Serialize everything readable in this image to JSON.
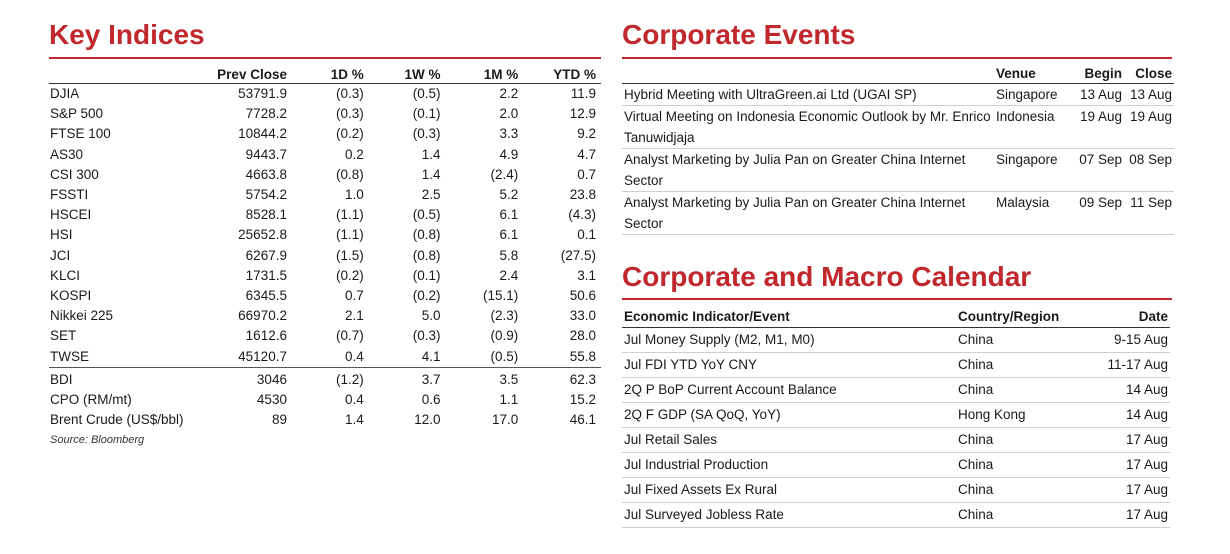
{
  "key_indices": {
    "title": "Key Indices",
    "columns": [
      "",
      "Prev Close",
      "1D %",
      "1W %",
      "1M %",
      "YTD %"
    ],
    "indices": [
      [
        "DJIA",
        "53791.9",
        "(0.3)",
        "(0.5)",
        "2.2",
        "11.9"
      ],
      [
        "S&P 500",
        "7728.2",
        "(0.3)",
        "(0.1)",
        "2.0",
        "12.9"
      ],
      [
        "FTSE 100",
        "10844.2",
        "(0.2)",
        "(0.3)",
        "3.3",
        "9.2"
      ],
      [
        "AS30",
        "9443.7",
        "0.2",
        "1.4",
        "4.9",
        "4.7"
      ],
      [
        "CSI 300",
        "4663.8",
        "(0.8)",
        "1.4",
        "(2.4)",
        "0.7"
      ],
      [
        "FSSTI",
        "5754.2",
        "1.0",
        "2.5",
        "5.2",
        "23.8"
      ],
      [
        "HSCEI",
        "8528.1",
        "(1.1)",
        "(0.5)",
        "6.1",
        "(4.3)"
      ],
      [
        "HSI",
        "25652.8",
        "(1.1)",
        "(0.8)",
        "6.1",
        "0.1"
      ],
      [
        "JCI",
        "6267.9",
        "(1.5)",
        "(0.8)",
        "5.8",
        "(27.5)"
      ],
      [
        "KLCI",
        "1731.5",
        "(0.2)",
        "(0.1)",
        "2.4",
        "3.1"
      ],
      [
        "KOSPI",
        "6345.5",
        "0.7",
        "(0.2)",
        "(15.1)",
        "50.6"
      ],
      [
        "Nikkei 225",
        "66970.2",
        "2.1",
        "5.0",
        "(2.3)",
        "33.0"
      ],
      [
        "SET",
        "1612.6",
        "(0.7)",
        "(0.3)",
        "(0.9)",
        "28.0"
      ],
      [
        "TWSE",
        "45120.7",
        "0.4",
        "4.1",
        "(0.5)",
        "55.8"
      ]
    ],
    "commodities": [
      [
        "BDI",
        "3046",
        "(1.2)",
        "3.7",
        "3.5",
        "62.3"
      ],
      [
        "CPO (RM/mt)",
        "4530",
        "0.4",
        "0.6",
        "1.1",
        "15.2"
      ],
      [
        "Brent Crude (US$/bbl)",
        "89",
        "1.4",
        "12.0",
        "17.0",
        "46.1"
      ]
    ],
    "source": "Source: Bloomberg"
  },
  "corporate_events": {
    "title": "Corporate Events",
    "columns": [
      "",
      "Venue",
      "Begin",
      "Close"
    ],
    "rows": [
      [
        "Hybrid Meeting with UltraGreen.ai Ltd (UGAI SP)",
        "Singapore",
        "13 Aug",
        "13 Aug"
      ],
      [
        "Virtual Meeting on Indonesia Economic Outlook by Mr. Enrico Tanuwidjaja",
        "Indonesia",
        "19 Aug",
        "19 Aug"
      ],
      [
        "Analyst Marketing by Julia Pan on Greater China Internet Sector",
        "Singapore",
        "07 Sep",
        "08 Sep"
      ],
      [
        "Analyst Marketing by Julia Pan on Greater China Internet Sector",
        "Malaysia",
        "09 Sep",
        "11 Sep"
      ]
    ]
  },
  "macro_calendar": {
    "title": "Corporate and Macro Calendar",
    "columns": [
      "Economic Indicator/Event",
      "Country/Region",
      "Date"
    ],
    "rows": [
      [
        "Jul Money Supply (M2, M1, M0)",
        "China",
        "9-15 Aug"
      ],
      [
        "Jul FDI YTD YoY CNY",
        "China",
        "11-17 Aug"
      ],
      [
        "2Q P BoP Current Account Balance",
        "China",
        "14 Aug"
      ],
      [
        "2Q F GDP (SA QoQ, YoY)",
        "Hong Kong",
        "14 Aug"
      ],
      [
        "Jul Retail Sales",
        "China",
        "17 Aug"
      ],
      [
        "Jul Industrial Production",
        "China",
        "17 Aug"
      ],
      [
        "Jul Fixed Assets Ex Rural",
        "China",
        "17 Aug"
      ],
      [
        "Jul Surveyed Jobless Rate",
        "China",
        "17 Aug"
      ]
    ]
  },
  "colors": {
    "accent": "#c0282d",
    "text": "#1a1a1a"
  }
}
